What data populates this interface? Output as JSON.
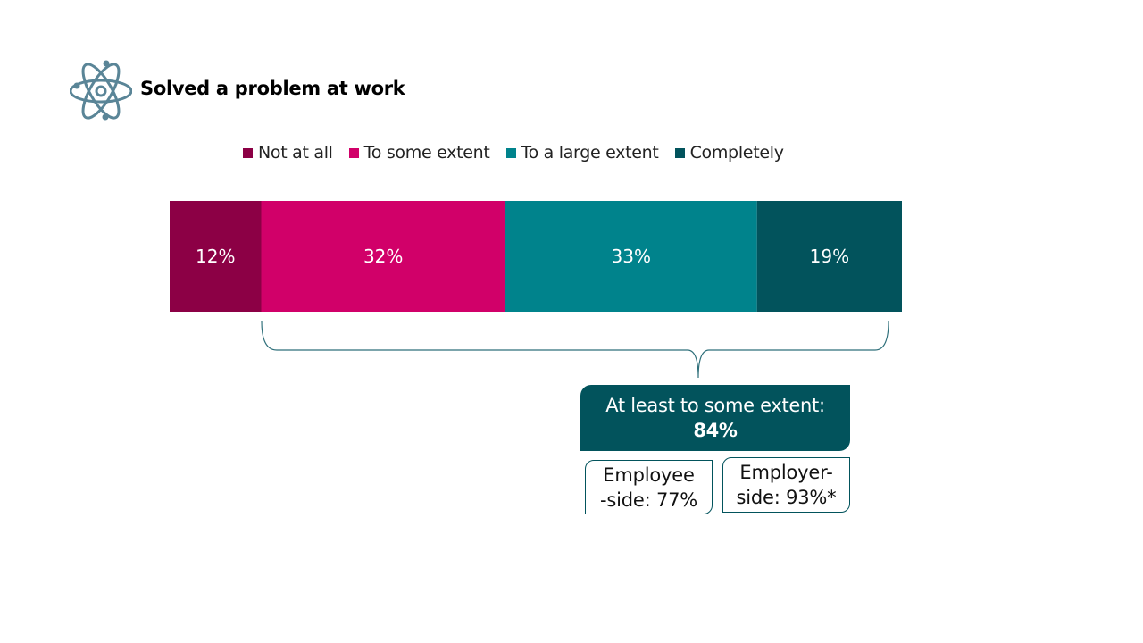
{
  "title": "Solved a problem at work",
  "icon": "atom-icon",
  "chart_data": {
    "type": "bar",
    "orientation": "horizontal-stacked",
    "categories": [
      "Solved a problem at work"
    ],
    "series": [
      {
        "name": "Not at all",
        "values": [
          12
        ],
        "label": "12%",
        "color": "#8c0045"
      },
      {
        "name": "To some extent",
        "values": [
          32
        ],
        "label": "32%",
        "color": "#d10069"
      },
      {
        "name": "To a large extent",
        "values": [
          33
        ],
        "label": "33%",
        "color": "#00838c"
      },
      {
        "name": "Completely",
        "values": [
          19
        ],
        "label": "19%",
        "color": "#02535c"
      }
    ],
    "legend_position": "top",
    "grid": false
  },
  "summary": {
    "label": "At least to some extent:",
    "value": "84%"
  },
  "employee": {
    "line1": "Employee",
    "line2": "-side: 77%"
  },
  "employer": {
    "line1": "Employer-",
    "line2": "side: 93%*"
  }
}
